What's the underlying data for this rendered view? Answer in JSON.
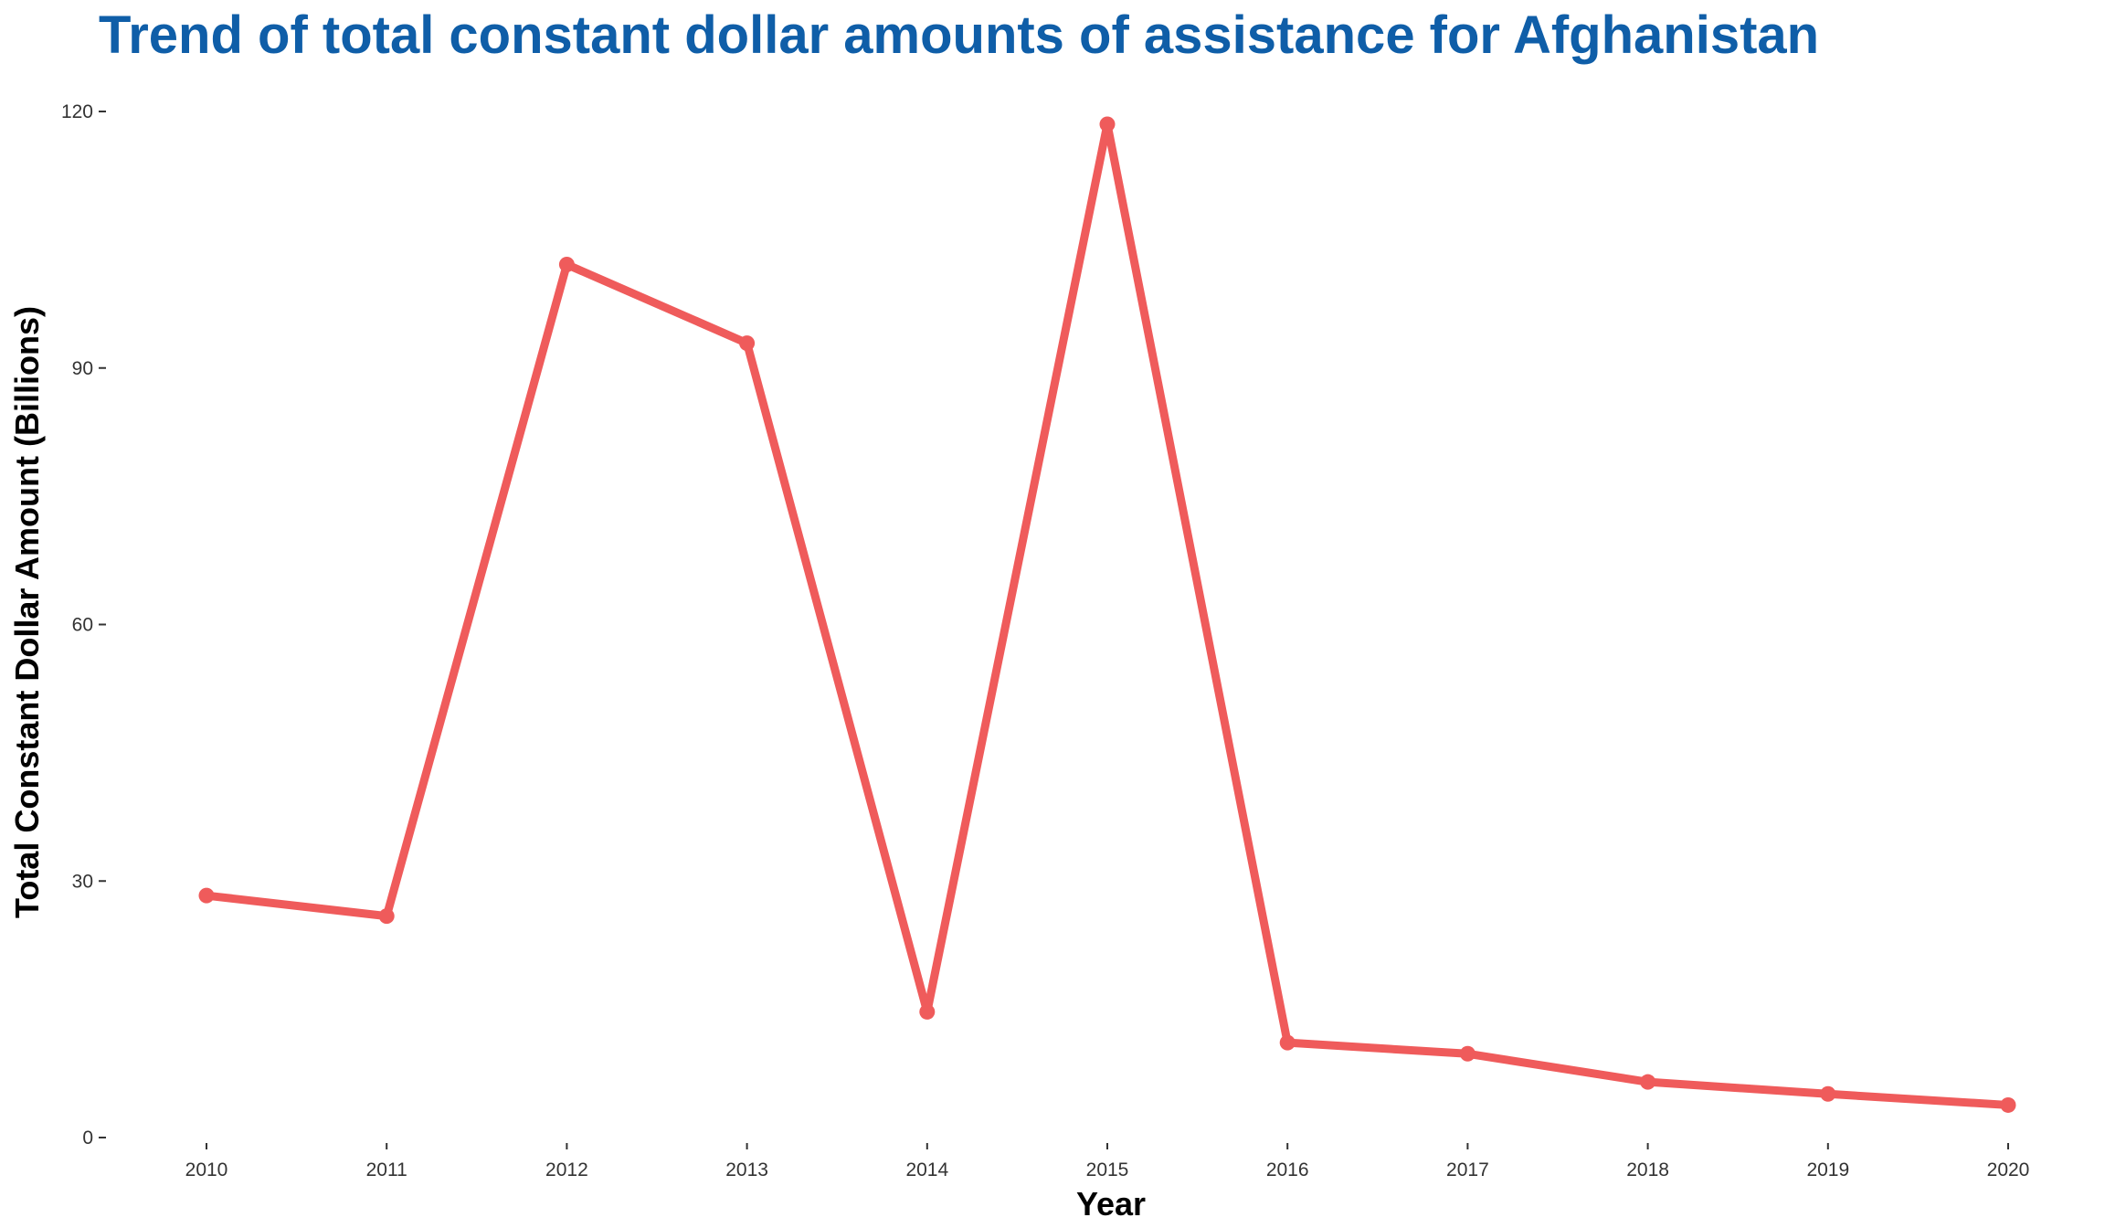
{
  "chart_data": {
    "type": "line",
    "title": "Trend of total constant dollar amounts of assistance for  Afghanistan",
    "xlabel": "Year",
    "ylabel": "Total Constant Dollar Amount (Billions)",
    "x": [
      2010,
      2011,
      2012,
      2013,
      2014,
      2015,
      2016,
      2017,
      2018,
      2019,
      2020
    ],
    "series": [
      {
        "values": [
          28.3,
          25.9,
          102.1,
          92.9,
          14.7,
          118.5,
          11.1,
          9.8,
          6.5,
          5.1,
          3.8
        ]
      }
    ],
    "yticks": [
      0,
      30,
      60,
      90,
      120
    ],
    "ylim": [
      0,
      120
    ],
    "grid": false,
    "legend": "none",
    "line_color": "#ef5b5b"
  }
}
